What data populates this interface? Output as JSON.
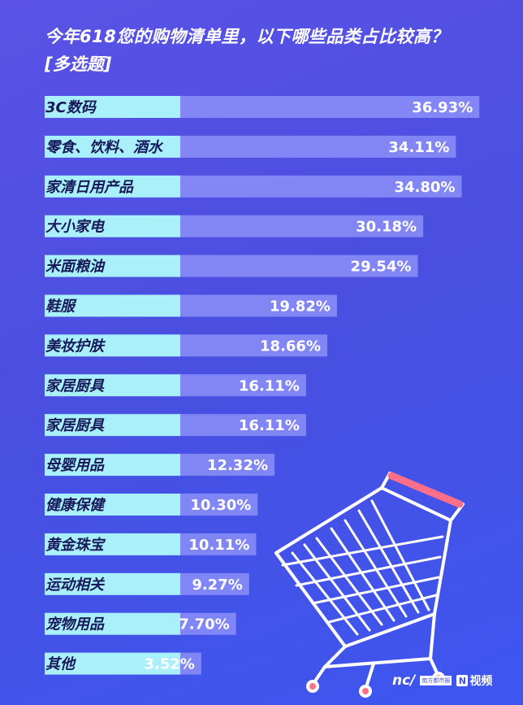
{
  "header": {
    "title": "今年618您的购物清单里，以下哪些品类占比较高？",
    "subtitle": "[多选题]"
  },
  "chart_data": {
    "type": "bar",
    "orientation": "horizontal",
    "title": "今年618您的购物清单里，以下哪些品类占比较高？",
    "subtitle": "[多选题]",
    "categories": [
      "3C数码",
      "零食、饮料、酒水",
      "家清日用产品",
      "大小家电",
      "米面粮油",
      "鞋服",
      "美妆护肤",
      "家居厨具",
      "家居厨具",
      "母婴用品",
      "健康保健",
      "黄金珠宝",
      "运动相关",
      "宠物用品",
      "其他"
    ],
    "values": [
      36.93,
      34.11,
      34.8,
      30.18,
      29.54,
      19.82,
      18.66,
      16.11,
      16.11,
      12.32,
      10.3,
      10.11,
      9.27,
      7.7,
      3.52
    ],
    "value_labels": [
      "36.93%",
      "34.11%",
      "34.80%",
      "30.18%",
      "29.54%",
      "19.82%",
      "18.66%",
      "16.11%",
      "16.11%",
      "12.32%",
      "10.30%",
      "10.11%",
      "9.27%",
      "7.70%",
      "3.52%"
    ],
    "colors": {
      "label_bg": "#a9f0fb",
      "bar": "#8c8ff8",
      "label_text": "#16185a",
      "value_text": "#ffffff"
    }
  },
  "branding": {
    "logo_nc": "nc/",
    "logo_sub": "南方都市报",
    "logo_n": "N",
    "logo_n_text": "视频"
  }
}
